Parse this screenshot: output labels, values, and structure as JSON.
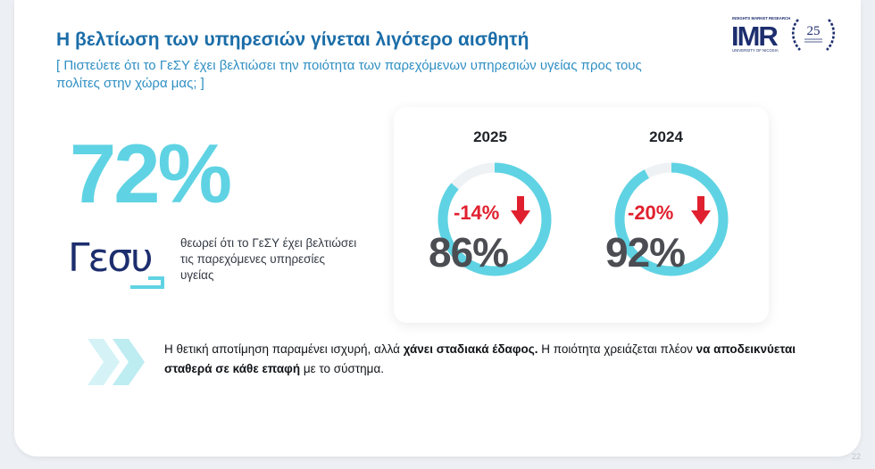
{
  "header": {
    "title": "Η βελτίωση των υπηρεσιών γίνεται λιγότερο αισθητή",
    "subtitle": "[ Πιστεύετε ότι το ΓεΣΥ έχει βελτιώσει την ποιότητα των παρεχόμενων υπηρεσιών υγείας προς τους πολίτες στην χώρα μας; ]"
  },
  "logo": {
    "tagline": "INSIGHTS MARKET RESEARCH",
    "name": "IMR",
    "university": "UNIVERSITY OF NICOSIA",
    "anniversary": "25"
  },
  "headline": {
    "value": "72%",
    "gesy_logo_text": "Γεσυ",
    "description": "θεωρεί ότι το ΓεΣΥ έχει βελτιώσει τις παρεχόμενες υπηρεσίες υγείας"
  },
  "comparison": [
    {
      "year": "2025",
      "value": "86%",
      "change": "-14%",
      "fraction": 0.86
    },
    {
      "year": "2024",
      "value": "92%",
      "change": "-20%",
      "fraction": 0.92
    }
  ],
  "conclusion": {
    "part1": "Η θετική αποτίμηση παραμένει ισχυρή, αλλά ",
    "bold1": "χάνει σταδιακά έδαφος.",
    "part2": " Η ποιότητα χρειάζεται πλέον ",
    "bold2": "να αποδεικνύεται σταθερά σε κάθε επαφή",
    "part3": " με το σύστημα."
  },
  "page_number": "22",
  "colors": {
    "accent_blue": "#1b6da8",
    "subtitle_blue": "#2f8fc3",
    "cyan": "#5fd3e3",
    "red": "#e0202e",
    "navy": "#1d2e6e"
  }
}
